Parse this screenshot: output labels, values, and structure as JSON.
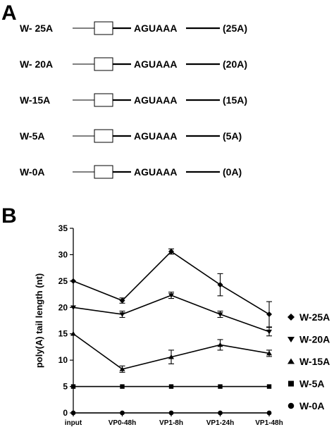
{
  "panel_a": {
    "label": "A",
    "motif": "AGUAAA",
    "constructs": [
      {
        "name": "W- 25A",
        "tail": "(25A)"
      },
      {
        "name": "W- 20A",
        "tail": "(20A)"
      },
      {
        "name": "W-15A",
        "tail": "(15A)"
      },
      {
        "name": "W-5A",
        "tail": "(5A)"
      },
      {
        "name": "W-0A",
        "tail": "(0A)"
      }
    ]
  },
  "panel_b": {
    "label": "B"
  },
  "chart_data": {
    "type": "line",
    "title": "",
    "xlabel": "",
    "ylabel": "poly(A) tail length (nt)",
    "categories": [
      "input",
      "VP0-48h",
      "VP1-8h",
      "VP1-24h",
      "VP1-48h"
    ],
    "ylim": [
      0,
      35
    ],
    "yticks": [
      0,
      5,
      10,
      15,
      20,
      25,
      30,
      35
    ],
    "grid": false,
    "legend_position": "right",
    "series": [
      {
        "name": "W-25A",
        "marker": "diamond",
        "values": [
          25,
          21.3,
          30.6,
          24.3,
          18.7
        ],
        "errors": [
          0,
          0.5,
          0.5,
          2.1,
          2.4
        ]
      },
      {
        "name": "W-20A",
        "marker": "triangle-down",
        "values": [
          20,
          18.7,
          22.3,
          18.7,
          15.4
        ],
        "errors": [
          0,
          0.6,
          0.6,
          0.6,
          0.8
        ]
      },
      {
        "name": "W-15A",
        "marker": "triangle-up",
        "values": [
          15,
          8.3,
          10.6,
          12.9,
          11.3
        ],
        "errors": [
          0,
          0.6,
          1.3,
          1.0,
          0.6
        ]
      },
      {
        "name": "W-5A",
        "marker": "square",
        "values": [
          5,
          5,
          5,
          5,
          5
        ],
        "errors": [
          0,
          0,
          0,
          0,
          0
        ]
      },
      {
        "name": "W-0A",
        "marker": "circle",
        "values": [
          0,
          0,
          0,
          0,
          0
        ],
        "errors": [
          0,
          0,
          0,
          0,
          0
        ]
      }
    ]
  }
}
